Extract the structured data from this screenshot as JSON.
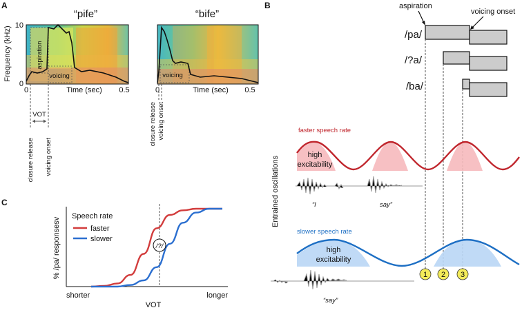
{
  "panel_a": {
    "label": "A",
    "ylabel": "Frequency (kHz)",
    "ytick_top": "10",
    "ytick_bottom": "0",
    "left": {
      "title": "“pife”",
      "xtick_start": "0",
      "xtick_end": "0.5",
      "xlabel": "Time (sec)",
      "region_aspiration": "aspiration",
      "region_voicing": "voicing"
    },
    "right": {
      "title": "“bife”",
      "xtick_start": "0",
      "xtick_end": "0.5",
      "xlabel": "Time (sec)",
      "region_voicing": "voicing"
    },
    "vot_label": "VOT",
    "closure_release": "closure release",
    "voicing_onset": "voicing onset",
    "closure_release_b": "closure release",
    "voicing_onset_b": "voicing onset"
  },
  "panel_b": {
    "label": "B",
    "aspiration_label": "aspiration",
    "voicing_onset_label": "voicing onset",
    "syllables": [
      "/pa/",
      "/?a/",
      "/ba/"
    ],
    "y_axis_label": "Entrained oscillations",
    "faster_label": "faster speech rate",
    "faster_excit_1": "high",
    "faster_excit_2": "excitability",
    "slower_label": "slower speech rate",
    "slower_excit_1": "high",
    "slower_excit_2": "excitability",
    "word_i": "“I",
    "word_say": "say”",
    "word_say_slow": "“say”",
    "markers": [
      "1",
      "2",
      "3"
    ],
    "faster_color": "#c0262d",
    "faster_fill": "#f6b9bc",
    "slower_color": "#1d6fc4",
    "slower_fill": "#b9d6f5",
    "bar_fill": "#cccccc"
  },
  "panel_c": {
    "label": "C",
    "ylabel": "% /pa/ responsesv",
    "xlabel": "VOT",
    "x_left": "shorter",
    "x_right": "longer",
    "legend_title": "Speech rate",
    "legend_faster": "faster",
    "legend_slower": "slower",
    "ambiguous_mark": "/?/",
    "faster_color": "#d23c3c",
    "slower_color": "#2b6fd0"
  },
  "chart_data": {
    "type": "line",
    "title": "Speech rate",
    "xlabel": "VOT",
    "ylabel": "% /pa/ responsesv",
    "x_range_labels": [
      "shorter",
      "longer"
    ],
    "series": [
      {
        "name": "faster",
        "x": [
          0,
          0.1,
          0.2,
          0.3,
          0.4,
          0.5,
          0.6,
          0.7,
          0.8,
          0.9,
          1.0
        ],
        "values": [
          0.0,
          0.01,
          0.04,
          0.15,
          0.42,
          0.75,
          0.92,
          0.98,
          1.0,
          1.0,
          1.0
        ]
      },
      {
        "name": "slower",
        "x": [
          0,
          0.1,
          0.2,
          0.3,
          0.4,
          0.5,
          0.6,
          0.7,
          0.8,
          0.9,
          1.0
        ],
        "values": [
          0.0,
          0.0,
          0.0,
          0.02,
          0.08,
          0.25,
          0.55,
          0.82,
          0.95,
          1.0,
          1.0
        ]
      }
    ],
    "annotations": [
      "/?/"
    ]
  }
}
